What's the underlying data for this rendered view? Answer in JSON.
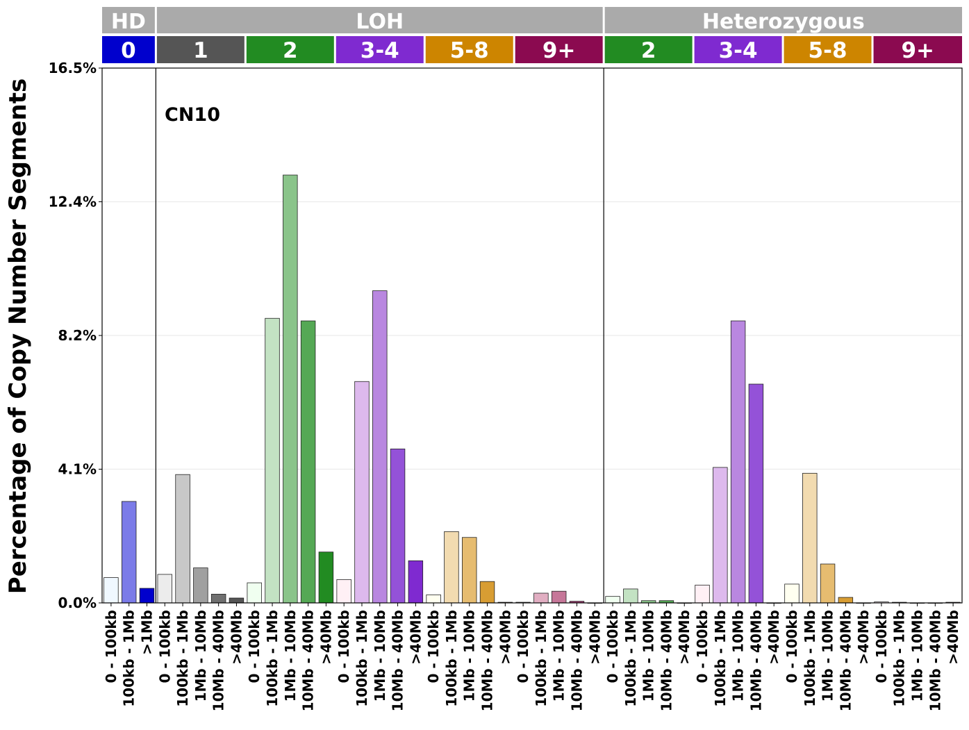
{
  "chart_data": {
    "type": "bar",
    "title": "",
    "annotation": "CN10",
    "ylabel": "Percentage of Copy Number Segments",
    "xlabel": "",
    "ylim": [
      0,
      16.5
    ],
    "y_ticks": [
      "0.0%",
      "4.1%",
      "8.2%",
      "12.4%",
      "16.5%"
    ],
    "y_tick_values": [
      0,
      4.125,
      8.25,
      12.375,
      16.5
    ],
    "grid": "horizontal",
    "top_groups": [
      {
        "label": "HD",
        "color": "#aaaaaa"
      },
      {
        "label": "LOH",
        "color": "#aaaaaa"
      },
      {
        "label": "Heterozygous",
        "color": "#aaaaaa"
      }
    ],
    "cn_groups": [
      {
        "label": "0",
        "color": "#0000cd"
      },
      {
        "label": "1",
        "color": "#555555"
      },
      {
        "label": "2",
        "color": "#228b22"
      },
      {
        "label": "3-4",
        "color": "#7f2ad0"
      },
      {
        "label": "5-8",
        "color": "#cd8500"
      },
      {
        "label": "9+",
        "color": "#8b0a50"
      },
      {
        "label": "2",
        "color": "#228b22"
      },
      {
        "label": "3-4",
        "color": "#7f2ad0"
      },
      {
        "label": "5-8",
        "color": "#cd8500"
      },
      {
        "label": "9+",
        "color": "#8b0a50"
      }
    ],
    "categories": [
      "0 - 100kb",
      "100kb - 1Mb",
      ">1Mb",
      "0 - 100kb",
      "100kb - 1Mb",
      "1Mb - 10Mb",
      "10Mb - 40Mb",
      ">40Mb",
      "0 - 100kb",
      "100kb - 1Mb",
      "1Mb - 10Mb",
      "10Mb - 40Mb",
      ">40Mb",
      "0 - 100kb",
      "100kb - 1Mb",
      "1Mb - 10Mb",
      "10Mb - 40Mb",
      ">40Mb",
      "0 - 100kb",
      "100kb - 1Mb",
      "1Mb - 10Mb",
      "10Mb - 40Mb",
      ">40Mb",
      "0 - 100kb",
      "100kb - 1Mb",
      "1Mb - 10Mb",
      "10Mb - 40Mb",
      ">40Mb",
      "0 - 100kb",
      "100kb - 1Mb",
      "1Mb - 10Mb",
      "10Mb - 40Mb",
      ">40Mb",
      "0 - 100kb",
      "100kb - 1Mb",
      "1Mb - 10Mb",
      "10Mb - 40Mb",
      ">40Mb",
      "0 - 100kb",
      "100kb - 1Mb",
      "1Mb - 10Mb",
      "10Mb - 40Mb",
      ">40Mb",
      "0 - 100kb",
      "100kb - 1Mb",
      "1Mb - 10Mb",
      "10Mb - 40Mb",
      ">40Mb"
    ],
    "values": [
      0.78,
      3.13,
      0.45,
      0.88,
      3.96,
      1.08,
      0.27,
      0.15,
      0.62,
      8.78,
      13.2,
      8.7,
      1.57,
      0.72,
      6.83,
      9.63,
      4.75,
      1.3,
      0.25,
      2.2,
      2.02,
      0.66,
      0.02,
      0.02,
      0.3,
      0.36,
      0.05,
      0.0,
      0.2,
      0.43,
      0.07,
      0.07,
      0.0,
      0.55,
      4.18,
      8.7,
      6.75,
      0.0,
      0.58,
      4.0,
      1.2,
      0.17,
      0.0,
      0.03,
      0.02,
      0.0,
      0.0,
      0.02
    ],
    "bar_colors": [
      "#f0f8ff",
      "#7b7be8",
      "#0000cd",
      "#ececec",
      "#c8c8c8",
      "#a0a0a0",
      "#707070",
      "#555555",
      "#f0fff0",
      "#c3e2c3",
      "#8ac48a",
      "#55a855",
      "#228b22",
      "#fff0f5",
      "#ddb9ed",
      "#b987e0",
      "#9452d8",
      "#7f2ad0",
      "#fffff0",
      "#f2dbb0",
      "#e6bc70",
      "#d89d33",
      "#cd8500",
      "#fff0f5",
      "#e1aec2",
      "#c67799",
      "#a33d74",
      "#8b0a50",
      "#f0fff0",
      "#c3e2c3",
      "#8ac48a",
      "#55a855",
      "#228b22",
      "#fff0f5",
      "#ddb9ed",
      "#b987e0",
      "#9452d8",
      "#7f2ad0",
      "#fffff0",
      "#f2dbb0",
      "#e6bc70",
      "#d89d33",
      "#cd8500",
      "#fff0f5",
      "#e1aec2",
      "#c67799",
      "#a33d74",
      "#8b0a50"
    ]
  }
}
